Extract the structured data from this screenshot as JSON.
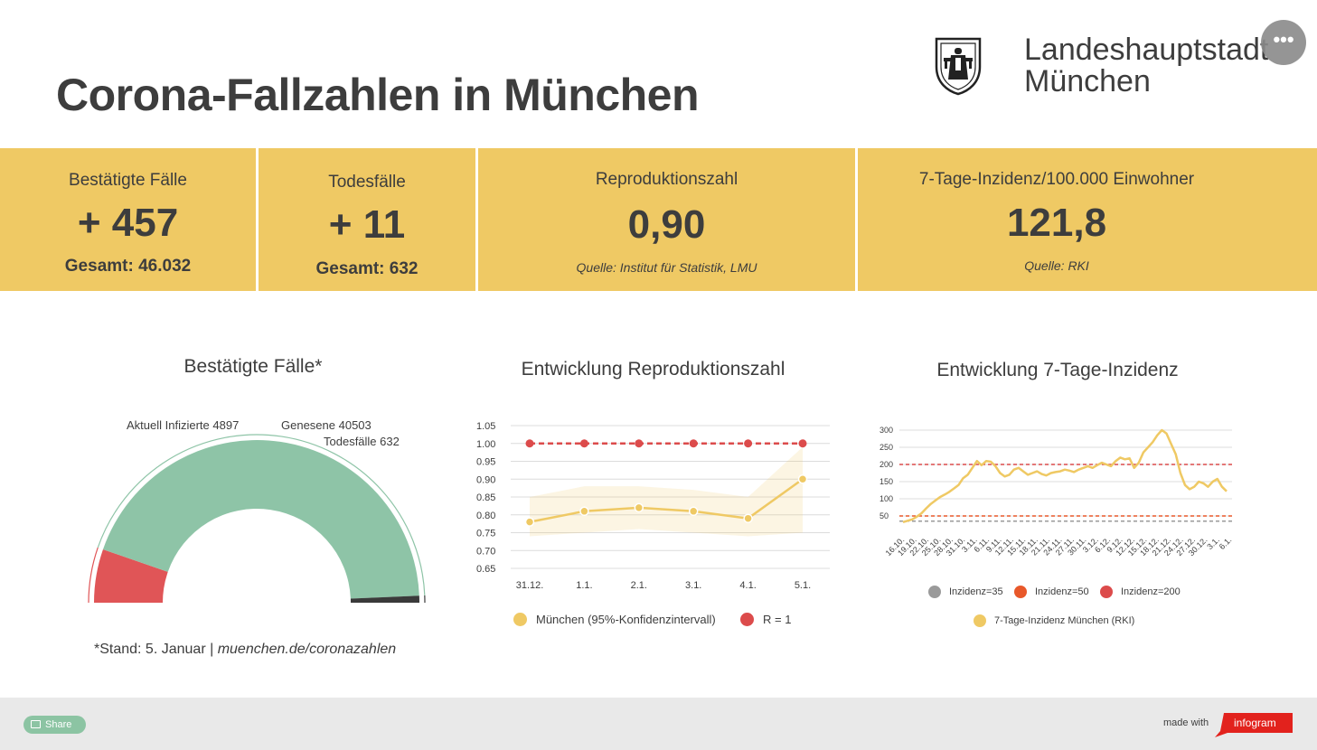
{
  "header": {
    "title": "Corona-Fallzahlen in München",
    "org_name_line1": "Landeshauptstadt",
    "org_name_line2": "München",
    "menu_label": "•••"
  },
  "kpis": [
    {
      "label": "Bestätigte Fälle",
      "value": "+ 457",
      "total": "Gesamt: 46.032"
    },
    {
      "label": "Todesfälle",
      "value": "+ 11",
      "total": "Gesamt: 632"
    },
    {
      "label": "Reproduktionszahl",
      "value": "0,90",
      "source": "Quelle: Institut für Statistik, LMU"
    },
    {
      "label": "7-Tage-Inzidenz/100.000 Einwohner",
      "value": "121,8",
      "source": "Quelle: RKI"
    }
  ],
  "footnote": {
    "stand": "*Stand: 5. Januar | ",
    "link": "muenchen.de/coronazahlen"
  },
  "footer": {
    "share_label": "Share",
    "made_with": "made with",
    "brand": "infogram"
  },
  "colors": {
    "kpi_band": "#efc964",
    "infected": "#e05557",
    "recovered": "#8ec4a7",
    "deaths": "#3a3a3a",
    "series_yellow": "#efc964",
    "ref_red": "#dc4b4b",
    "ref_orange": "#e8582a",
    "ref_gray": "#9a9a9a"
  },
  "chart_data": [
    {
      "type": "pie",
      "subtype": "semi-donut",
      "title": "Bestätigte Fälle*",
      "slices": [
        {
          "name": "Aktuell Infizierte",
          "value": 4897,
          "label": "Aktuell Infizierte 4897"
        },
        {
          "name": "Genesene",
          "value": 40503,
          "label": "Genesene 40503"
        },
        {
          "name": "Todesfälle",
          "value": 632,
          "label": "Todesfälle 632"
        }
      ]
    },
    {
      "type": "line",
      "title": "Entwicklung Reproduktionszahl",
      "categories": [
        "31.12.",
        "1.1.",
        "2.1.",
        "3.1.",
        "4.1.",
        "5.1."
      ],
      "y_ticks": [
        "1.05",
        "1.00",
        "0.95",
        "0.90",
        "0.85",
        "0.80",
        "0.75",
        "0.70",
        "0.65"
      ],
      "ylim": [
        0.65,
        1.05
      ],
      "series": [
        {
          "name": "München (95%-Konfidenzintervall)",
          "values": [
            0.78,
            0.81,
            0.82,
            0.81,
            0.79,
            0.9
          ],
          "lower": [
            0.74,
            0.75,
            0.76,
            0.75,
            0.74,
            0.75
          ],
          "upper": [
            0.85,
            0.88,
            0.88,
            0.87,
            0.85,
            0.99
          ]
        },
        {
          "name": "R = 1",
          "values": [
            1.0,
            1.0,
            1.0,
            1.0,
            1.0,
            1.0
          ]
        }
      ],
      "legend": "bottom",
      "grid": true
    },
    {
      "type": "line",
      "title": "Entwicklung 7-Tage-Inzidenz",
      "x_labels": [
        "16.10.",
        "19.10.",
        "22.10.",
        "25.10.",
        "28.10.",
        "31.10.",
        "3.11.",
        "6.11.",
        "9.11.",
        "12.11.",
        "15.11.",
        "18.11.",
        "21.11.",
        "24.11.",
        "27.11.",
        "30.11.",
        "3.12.",
        "6.12.",
        "9.12.",
        "12.12.",
        "15.12.",
        "18.12.",
        "21.12.",
        "24.12.",
        "27.12.",
        "30.12.",
        "3.1.",
        "6.1."
      ],
      "y_ticks": [
        "300",
        "250",
        "200",
        "150",
        "100",
        "50"
      ],
      "ylim": [
        0,
        300
      ],
      "series": [
        {
          "name": "7-Tage-Inzidenz München (RKI)",
          "values": [
            32,
            36,
            40,
            48,
            58,
            72,
            85,
            95,
            105,
            112,
            120,
            130,
            140,
            160,
            170,
            190,
            210,
            198,
            210,
            208,
            195,
            175,
            165,
            170,
            185,
            190,
            180,
            170,
            175,
            180,
            172,
            168,
            175,
            178,
            180,
            185,
            182,
            178,
            185,
            190,
            195,
            190,
            198,
            205,
            200,
            195,
            210,
            220,
            215,
            218,
            190,
            205,
            235,
            250,
            265,
            285,
            300,
            290,
            260,
            230,
            175,
            140,
            128,
            135,
            150,
            145,
            135,
            150,
            158,
            135,
            121.8
          ]
        },
        {
          "name": "Inzidenz=35",
          "values": [
            35
          ]
        },
        {
          "name": "Inzidenz=50",
          "values": [
            50
          ]
        },
        {
          "name": "Inzidenz=200",
          "values": [
            200
          ]
        }
      ],
      "legend": "bottom",
      "grid": true
    }
  ]
}
